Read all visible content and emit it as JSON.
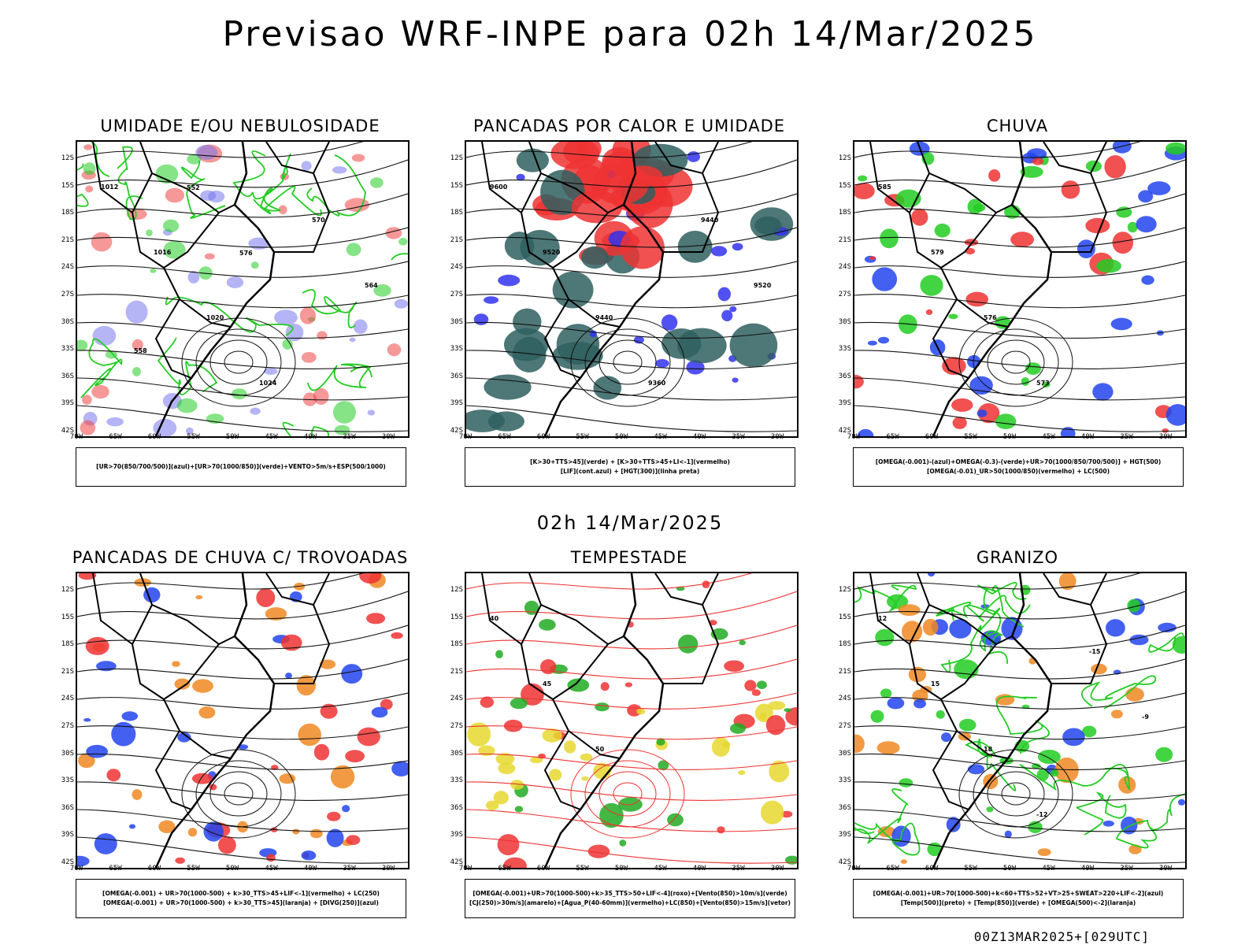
{
  "title": "Previsao WRF-INPE  para 02h 14/Mar/2025",
  "subtitle": "02h 14/Mar/2025",
  "footer": "00Z13MAR2025+[029UTC]",
  "axes": {
    "lat_labels": [
      "12S",
      "15S",
      "18S",
      "21S",
      "24S",
      "27S",
      "30S",
      "33S",
      "36S",
      "39S",
      "42S"
    ],
    "lon_labels": [
      "70W",
      "65W",
      "60W",
      "55W",
      "50W",
      "45W",
      "40W",
      "35W",
      "30W"
    ]
  },
  "panels": [
    {
      "title": "UMIDADE E/OU NEBULOSIDADE",
      "legend": [
        "[UR>70(850/700/500)](azul)+[UR>70(1000/850)](verde)+VENTO>5m/s+ESP(500/1000)"
      ],
      "colors": [
        "#7777ee",
        "#22cc22",
        "#ee4444"
      ],
      "contour_labels": [
        "1012",
        "1016",
        "1020",
        "1024",
        "570",
        "564",
        "558",
        "552",
        "576"
      ]
    },
    {
      "title": "PANCADAS POR CALOR E UMIDADE",
      "legend": [
        "[K>30+TTS>45](verde) + [K>30+TTS>45+LI<-1](vermelho)",
        "[LIF](cont.azul) + [HGT(300)](linha preta)"
      ],
      "colors": [
        "#2f5f5f",
        "#ee3333",
        "#3333ee"
      ],
      "contour_labels": [
        "9600",
        "9520",
        "9440",
        "9360",
        "9440",
        "9520"
      ]
    },
    {
      "title": "CHUVA",
      "legend": [
        "[OMEGA(-0.001)-(azul)+OMEGA(-0.3)-(verde)+UR>70(1000/850/700/500)] + HGT(500)",
        "[OMEGA(-0.01)_UR>50(1000/850)(vermelho) + LC(500)"
      ],
      "colors": [
        "#2244ee",
        "#22cc22",
        "#ee3333"
      ],
      "contour_labels": [
        "585",
        "579",
        "576",
        "573"
      ]
    },
    {
      "title": "PANCADAS DE CHUVA C/ TROVOADAS",
      "legend": [
        "[OMEGA(-0.001) + UR>70(1000-500) + k>30_TTS>45+LIF<-1](vermelho) + LC(250)",
        "[OMEGA(-0.001) + UR>70(1000-500) + k>30_TTS>45](laranja) + [DIVG(250)](azul)"
      ],
      "colors": [
        "#ee3333",
        "#ee8822",
        "#2244ee"
      ],
      "contour_labels": []
    },
    {
      "title": "TEMPESTADE",
      "legend": [
        "[OMEGA(-0.001)+UR>70(1000-500)+k>35_TTS>50+LIF<-4](roxo)+[Vento(850)>10m/s](verde)",
        "[CJ(250)>30m/s](amarelo)+[Agua_P(40-60mm)](vermelho)+LC(850)+[Vento(850)>15m/s](vetor)"
      ],
      "colors": [
        "#e6d830",
        "#22aa22",
        "#ee3333"
      ],
      "contour_labels": [
        "40",
        "45",
        "50"
      ]
    },
    {
      "title": "GRANIZO",
      "legend": [
        "[OMEGA(-0.001)+UR>70(1000-500)+k<60+TTS>52+VT>25+SWEAT>220+LIF<-2](azul)",
        "[Temp(500)](preto) + [Temp(850)](verde) + [OMEGA(500)<-2](laranja)"
      ],
      "colors": [
        "#22cc22",
        "#ee8822",
        "#2244ee"
      ],
      "contour_labels": [
        "12",
        "15",
        "18",
        "-12",
        "-15",
        "-9"
      ]
    }
  ]
}
